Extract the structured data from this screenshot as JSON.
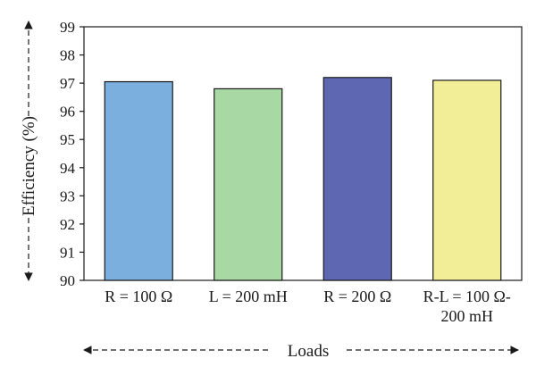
{
  "chart_data": {
    "type": "bar",
    "title": "",
    "xlabel": "Loads",
    "ylabel": "Efficiency (%)",
    "ylim": [
      90,
      99
    ],
    "yticks": [
      "90",
      "91",
      "92",
      "93",
      "94",
      "95",
      "96",
      "97",
      "98",
      "99"
    ],
    "categories": [
      {
        "label": "R = 100 Ω"
      },
      {
        "label": "L = 200 mH"
      },
      {
        "label": "R = 200 Ω"
      },
      {
        "label": "R-L = 100 Ω-",
        "label_line2": "200 mH"
      }
    ],
    "values": [
      97.05,
      96.8,
      97.2,
      97.1
    ],
    "colors": [
      "#7aafde",
      "#a8d8a4",
      "#5d67b2",
      "#f2ee98"
    ],
    "grid": false,
    "legend": "none",
    "axis_title_style": "dashed double-headed arrows"
  }
}
